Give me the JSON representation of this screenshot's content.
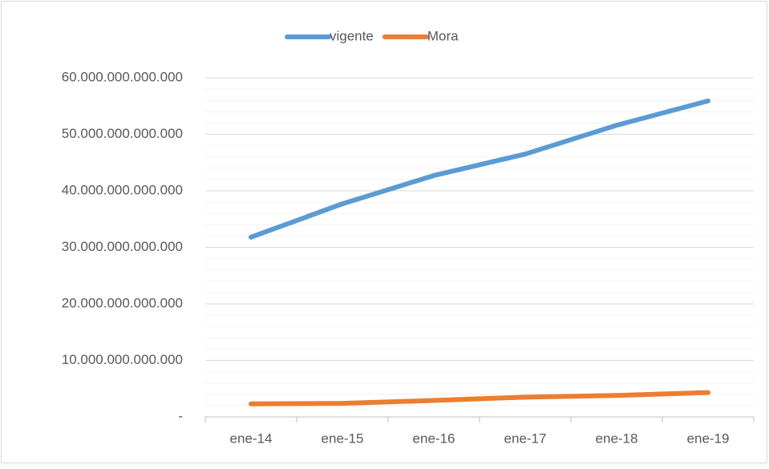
{
  "chart_data": {
    "type": "line",
    "categories": [
      "ene-14",
      "ene-15",
      "ene-16",
      "ene-17",
      "ene-18",
      "ene-19"
    ],
    "series": [
      {
        "name": "vigente",
        "color": "#5b9bd5",
        "values": [
          31800000000000,
          37700000000000,
          42700000000000,
          46500000000000,
          51600000000000,
          55900000000000
        ]
      },
      {
        "name": "Mora",
        "color": "#ed7d31",
        "values": [
          2300000000000,
          2400000000000,
          2900000000000,
          3500000000000,
          3800000000000,
          4300000000000
        ]
      }
    ],
    "ylim": [
      0,
      60000000000000
    ],
    "yticks": [
      {
        "value": 0,
        "label": "-"
      },
      {
        "value": 10000000000000,
        "label": "10.000.000.000.000"
      },
      {
        "value": 20000000000000,
        "label": "20.000.000.000.000"
      },
      {
        "value": 30000000000000,
        "label": "30.000.000.000.000"
      },
      {
        "value": 40000000000000,
        "label": "40.000.000.000.000"
      },
      {
        "value": 50000000000000,
        "label": "50.000.000.000.000"
      },
      {
        "value": 60000000000000,
        "label": "60.000.000.000.000"
      }
    ],
    "grid": true,
    "minor_grid": true,
    "legend": "top"
  }
}
